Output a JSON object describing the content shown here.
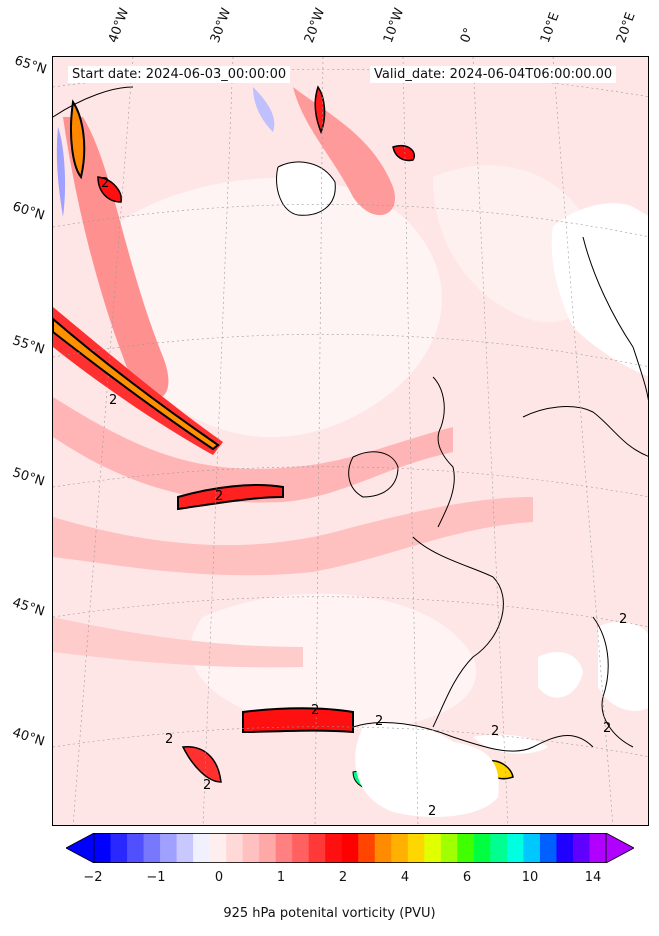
{
  "header": {
    "start_date": "Start date: 2024-06-03_00:00:00",
    "valid_date": "Valid_date: 2024-06-04T06:00:00.00"
  },
  "graticule": {
    "lon_labels": [
      "40°W",
      "30°W",
      "20°W",
      "10°W",
      "0°",
      "10°E",
      "20°E"
    ],
    "lat_labels": [
      "65°N",
      "60°N",
      "55°N",
      "50°N",
      "45°N",
      "40°N"
    ]
  },
  "contour_label": "2",
  "colorbar": {
    "title": "925 hPa potenital vorticity (PVU)",
    "tick_labels": [
      "−2",
      "−1",
      "0",
      "1",
      "2",
      "4",
      "6",
      "10",
      "14"
    ],
    "colors": [
      "#0000ff",
      "#2828ff",
      "#5050ff",
      "#7878ff",
      "#a0a0ff",
      "#c8c8ff",
      "#f0f0ff",
      "#ffeeee",
      "#ffd8d8",
      "#ffc0c0",
      "#ffa8a8",
      "#ff8080",
      "#ff6060",
      "#ff3838",
      "#ff1010",
      "#ff0000",
      "#ff4500",
      "#ff8c00",
      "#ffb000",
      "#ffd700",
      "#e0ff00",
      "#a0ff00",
      "#40ff00",
      "#00ff40",
      "#00ff90",
      "#00ffe0",
      "#00c8ff",
      "#0060ff",
      "#2000ff",
      "#6000ff",
      "#b000ff"
    ],
    "extend_low_color": "#0000ff",
    "extend_high_color": "#b000ff"
  }
}
